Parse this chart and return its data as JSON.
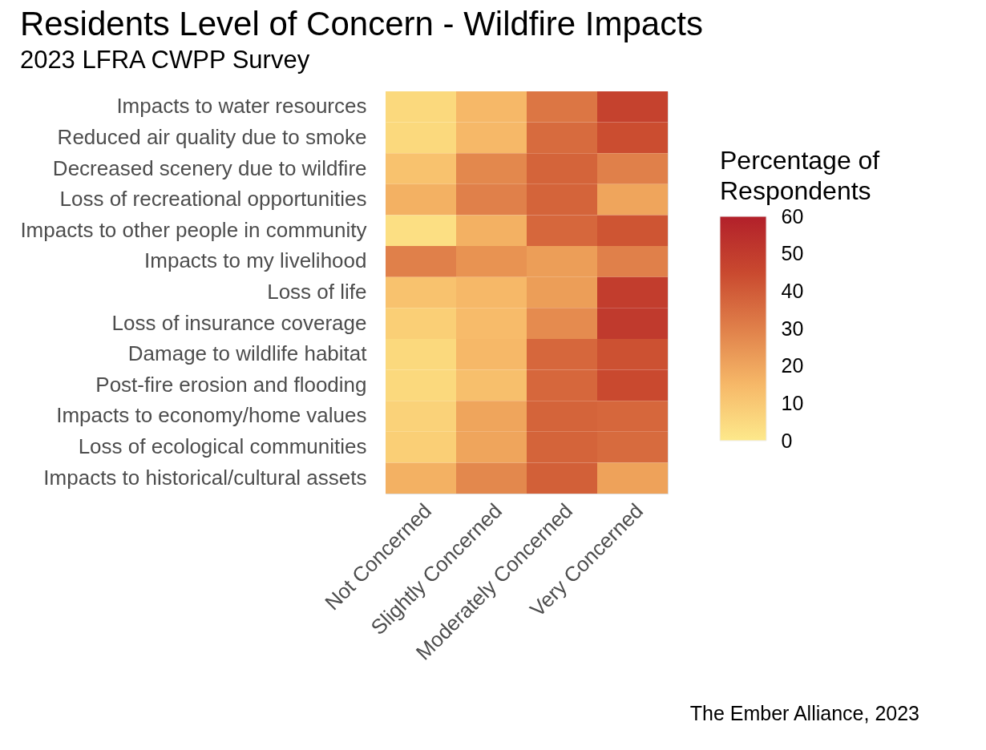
{
  "chart_data": {
    "type": "heatmap",
    "title": "Residents Level of Concern - Wildfire Impacts",
    "subtitle": "2023 LFRA CWPP Survey",
    "categories": [
      "Not Concerned",
      "Slightly Concerned",
      "Moderately Concerned",
      "Very Concerned"
    ],
    "y_categories": [
      "Impacts to water resources",
      "Reduced air quality due to smoke",
      "Decreased scenery due to wildfire",
      "Loss of recreational opportunities",
      "Impacts to other people in community",
      "Impacts to my livelihood",
      "Loss of life",
      "Loss of insurance coverage ",
      "Damage to wildlife habitat",
      "Post-fire erosion and flooding",
      "Impacts to economy/home values",
      "Loss of ecological communities",
      "Impacts to historical/cultural assets"
    ],
    "cells": [
      [
        5,
        15,
        33,
        48
      ],
      [
        5,
        15,
        36,
        44
      ],
      [
        12,
        28,
        38,
        30
      ],
      [
        17,
        30,
        38,
        20
      ],
      [
        3,
        17,
        37,
        42
      ],
      [
        30,
        25,
        22,
        30
      ],
      [
        12,
        15,
        22,
        50
      ],
      [
        8,
        14,
        27,
        51
      ],
      [
        5,
        15,
        37,
        43
      ],
      [
        5,
        13,
        37,
        45
      ],
      [
        7,
        20,
        38,
        37
      ],
      [
        8,
        20,
        38,
        36
      ],
      [
        17,
        28,
        39,
        21
      ]
    ],
    "clabel": "Percentage of Respondents",
    "clim": [
      0,
      60
    ],
    "cticks": [
      0,
      10,
      20,
      30,
      40,
      50,
      60
    ],
    "annotations": [
      "The Ember Alliance, 2023"
    ]
  }
}
